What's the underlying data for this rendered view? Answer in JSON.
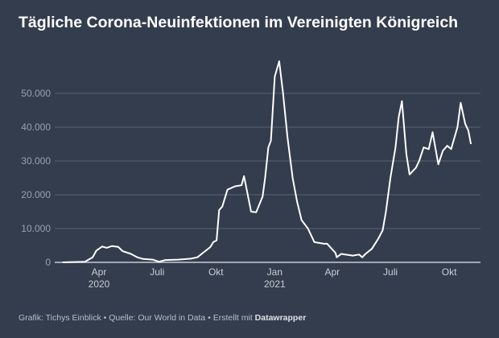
{
  "chart_data": {
    "type": "line",
    "title": "Tägliche Corona-Neuinfektionen im Vereinigten Königreich",
    "x_unit": "days since 2020-04-01",
    "ylim": [
      0,
      60000
    ],
    "grid": true,
    "y_ticks": [
      {
        "value": 0,
        "label": "0"
      },
      {
        "value": 10000,
        "label": "10.000"
      },
      {
        "value": 20000,
        "label": "20.000"
      },
      {
        "value": 30000,
        "label": "30.000"
      },
      {
        "value": 40000,
        "label": "40.000"
      },
      {
        "value": 50000,
        "label": "50.000"
      }
    ],
    "x_ticks": [
      {
        "day": 0,
        "label": "Apr",
        "year": "2020"
      },
      {
        "day": 91,
        "label": "Juli",
        "year": ""
      },
      {
        "day": 183,
        "label": "Okt",
        "year": ""
      },
      {
        "day": 275,
        "label": "Jan",
        "year": "2021"
      },
      {
        "day": 365,
        "label": "Apr",
        "year": ""
      },
      {
        "day": 456,
        "label": "Juli",
        "year": ""
      },
      {
        "day": 548,
        "label": "Okt",
        "year": ""
      }
    ],
    "series": [
      {
        "name": "Neuinfektionen",
        "x": [
          -57,
          -22,
          -10,
          -4,
          5,
          12,
          20,
          30,
          37,
          50,
          60,
          69,
          84,
          94,
          104,
          124,
          144,
          154,
          164,
          174,
          179,
          184,
          188,
          193,
          201,
          213,
          223,
          227,
          238,
          246,
          256,
          260,
          265,
          269,
          275,
          282,
          288,
          295,
          303,
          310,
          317,
          327,
          337,
          352,
          357,
          370,
          372,
          379,
          397,
          407,
          412,
          417,
          427,
          437,
          444,
          449,
          456,
          464,
          469,
          474,
          481,
          486,
          496,
          501,
          508,
          516,
          522,
          531,
          538,
          545,
          551,
          561,
          566,
          573,
          578,
          582
        ],
        "y": [
          0,
          200,
          1500,
          3500,
          4700,
          4300,
          4800,
          4600,
          3300,
          2500,
          1500,
          1000,
          800,
          200,
          700,
          800,
          1100,
          1500,
          3000,
          4500,
          6000,
          6500,
          15500,
          16500,
          21500,
          22500,
          22800,
          25500,
          15000,
          14800,
          19500,
          25000,
          34000,
          36000,
          55000,
          59500,
          50000,
          37000,
          25000,
          18000,
          12500,
          10000,
          6000,
          5500,
          5500,
          2800,
          1500,
          2500,
          2000,
          2300,
          1500,
          2500,
          4000,
          7000,
          9500,
          15000,
          25000,
          34000,
          43000,
          47700,
          32000,
          26000,
          28000,
          30000,
          34000,
          33500,
          38500,
          29000,
          33000,
          34500,
          33500,
          40000,
          47200,
          41000,
          39000,
          35000
        ]
      }
    ]
  },
  "footer": {
    "text": "Grafik: Tichys Einblick • Quelle: Our World in Data • Erstellt mit ",
    "brand": "Datawrapper"
  },
  "colors": {
    "background": "#333d4e",
    "line": "#ffffff",
    "grid": "#5b6372"
  }
}
